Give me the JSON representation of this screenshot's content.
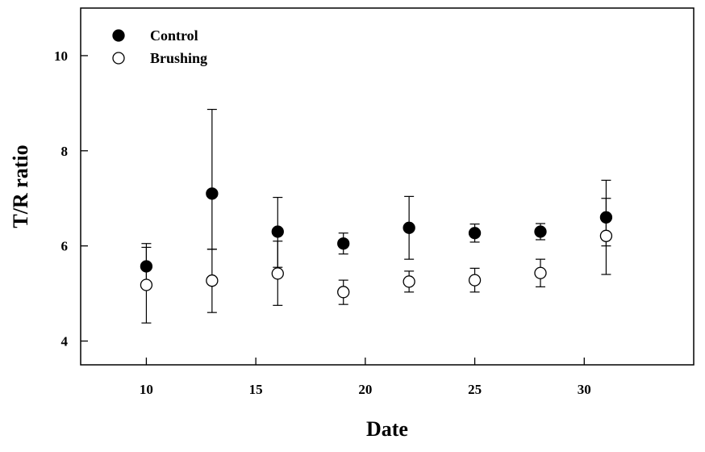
{
  "chart_data": {
    "type": "scatter",
    "title": "",
    "xlabel": "Date",
    "ylabel": "T/R ratio",
    "xlim": [
      7,
      35
    ],
    "ylim": [
      3.5,
      11
    ],
    "xticks": [
      10,
      15,
      20,
      25,
      30
    ],
    "yticks": [
      4,
      6,
      8,
      10
    ],
    "grid": false,
    "legend_position": "top-left",
    "x": [
      10,
      13,
      16,
      19,
      22,
      25,
      28,
      31
    ],
    "series": [
      {
        "name": "Control",
        "marker": "filled-circle",
        "color": "#000000",
        "values": [
          5.57,
          7.1,
          6.3,
          6.05,
          6.38,
          6.27,
          6.3,
          6.6
        ],
        "error_low": [
          5.17,
          5.93,
          5.55,
          5.83,
          5.72,
          6.08,
          6.13,
          6.0
        ],
        "error_high": [
          5.97,
          8.87,
          7.02,
          6.27,
          7.04,
          6.46,
          6.47,
          7.38
        ]
      },
      {
        "name": "Brushing",
        "marker": "open-circle",
        "color": "#ffffff",
        "values": [
          5.18,
          5.27,
          5.42,
          5.03,
          5.25,
          5.28,
          5.43,
          6.21
        ],
        "error_low": [
          4.38,
          4.6,
          4.75,
          4.77,
          5.03,
          5.03,
          5.14,
          5.4
        ],
        "error_high": [
          6.05,
          5.93,
          6.1,
          5.28,
          5.47,
          5.53,
          5.72,
          7.0
        ]
      }
    ]
  }
}
